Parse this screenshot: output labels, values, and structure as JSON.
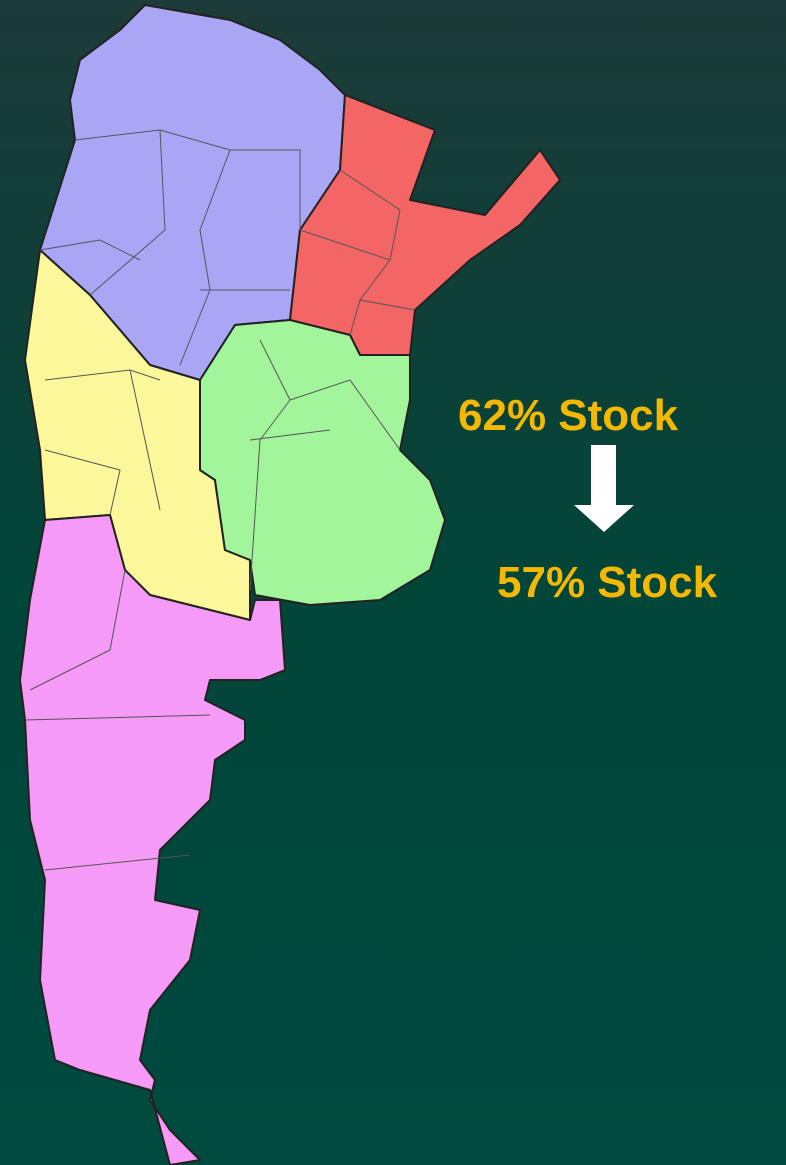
{
  "annotations": {
    "before": "62% Stock",
    "after": "57% Stock"
  }
}
